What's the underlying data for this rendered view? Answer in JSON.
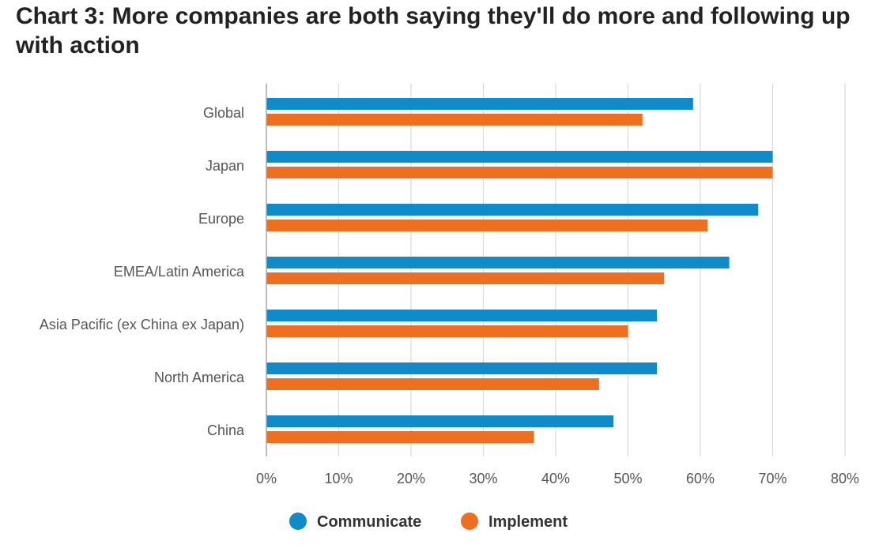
{
  "chart_data": {
    "type": "bar",
    "orientation": "horizontal",
    "title": "Chart 3: More companies are both saying they'll do more and following up with action",
    "categories": [
      "Global",
      "Japan",
      "Europe",
      "EMEA/Latin America",
      "Asia Pacific (ex China ex Japan)",
      "North America",
      "China"
    ],
    "series": [
      {
        "name": "Communicate",
        "color": "#0E8BC8",
        "values": [
          59,
          70,
          68,
          64,
          54,
          54,
          48
        ]
      },
      {
        "name": "Implement",
        "color": "#EE6F1F",
        "values": [
          52,
          70,
          61,
          55,
          50,
          46,
          37
        ]
      }
    ],
    "xlim": [
      0,
      80
    ],
    "xticks": [
      0,
      10,
      20,
      30,
      40,
      50,
      60,
      70,
      80
    ],
    "tick_suffix": "%",
    "grid": true,
    "legend_position": "bottom-center"
  }
}
